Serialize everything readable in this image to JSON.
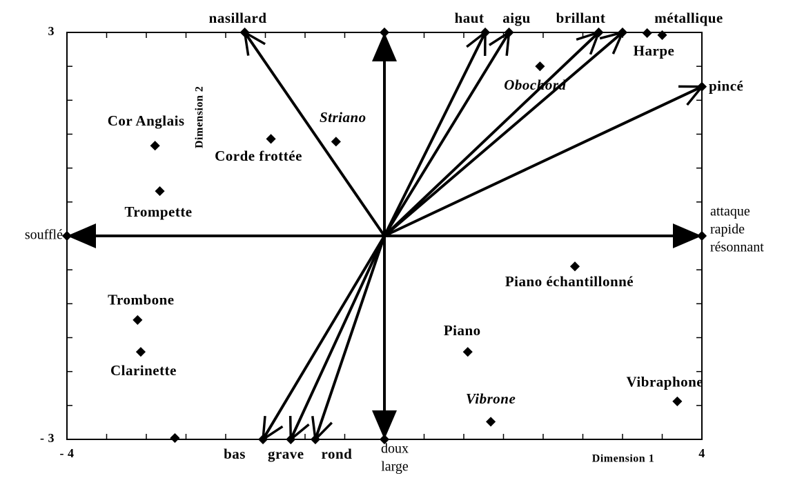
{
  "chart_data": {
    "type": "scatter",
    "x_label": "Dimension   1",
    "y_label": "Dimension   2",
    "xlim": [
      -4,
      4
    ],
    "ylim": [
      -3,
      3
    ],
    "xticks": [
      {
        "value": -4,
        "label": "- 4"
      },
      4
    ],
    "yticks": [
      {
        "value": -3,
        "label": "- 3"
      },
      3
    ],
    "minor_tick_step": 0.5,
    "color": "#000000",
    "points": [
      {
        "label": "Cor   Anglais",
        "x": -2.89,
        "y": 1.33
      },
      {
        "label": "Trompette",
        "x": -2.83,
        "y": 0.66
      },
      {
        "label": "Corde   frottée",
        "x": -1.43,
        "y": 1.43
      },
      {
        "label": "Striano",
        "x": -0.61,
        "y": 1.39,
        "style": "italic"
      },
      {
        "label": "Obochord",
        "x": 1.96,
        "y": 2.5,
        "style": "italic"
      },
      {
        "label": null,
        "x": 3.31,
        "y": 2.99
      },
      {
        "label": "Harpe",
        "x": 3.5,
        "y": 2.96
      },
      {
        "label": "Piano   échantillonné",
        "x": 2.4,
        "y": -0.45
      },
      {
        "label": "Piano",
        "x": 1.05,
        "y": -1.71
      },
      {
        "label": "Vibrone",
        "x": 1.34,
        "y": -2.74,
        "style": "italic"
      },
      {
        "label": "Vibraphone",
        "x": 3.69,
        "y": -2.44
      },
      {
        "label": "Trombone",
        "x": -3.11,
        "y": -1.24
      },
      {
        "label": "Clarinette",
        "x": -3.07,
        "y": -1.71
      },
      {
        "label": null,
        "x": -2.64,
        "y": -2.98
      }
    ],
    "vectors": [
      {
        "label": "nasillard",
        "x": -1.76,
        "y": 3
      },
      {
        "label": "haut",
        "x": 1.27,
        "y": 3
      },
      {
        "label": "aigu",
        "x": 1.57,
        "y": 3
      },
      {
        "label": "brillant",
        "x": 2.7,
        "y": 3
      },
      {
        "label": "métallique",
        "x": 3.0,
        "y": 3
      },
      {
        "label": "pincé",
        "x": 4,
        "y": 2.2
      },
      {
        "label": null,
        "x": 0,
        "y": 3
      },
      {
        "label": "soufflé",
        "x": -4,
        "y": 0
      },
      {
        "label": [
          "attaque",
          "rapide",
          "résonnant"
        ],
        "x": 4,
        "y": 0
      },
      {
        "label": [
          "doux",
          "large"
        ],
        "x": 0,
        "y": -3
      },
      {
        "label": "bas",
        "x": -1.53,
        "y": -3
      },
      {
        "label": "grave",
        "x": -1.18,
        "y": -3
      },
      {
        "label": "rond",
        "x": -0.87,
        "y": -3
      }
    ]
  }
}
